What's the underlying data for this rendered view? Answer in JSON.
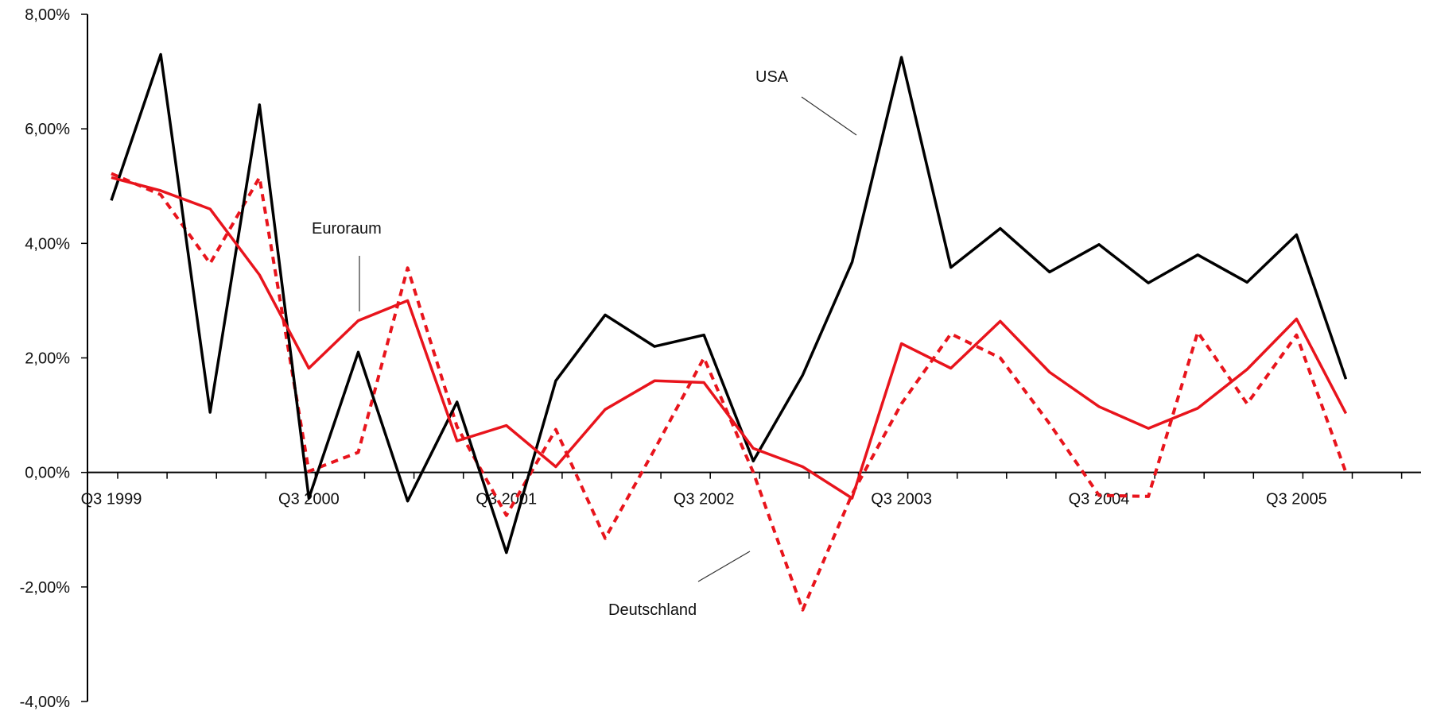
{
  "chart_data": {
    "type": "line",
    "categories": [
      "Q3 1999",
      "Q4 1999",
      "Q1 2000",
      "Q2 2000",
      "Q3 2000",
      "Q4 2000",
      "Q1 2001",
      "Q2 2001",
      "Q3 2001",
      "Q4 2001",
      "Q1 2002",
      "Q2 2002",
      "Q3 2002",
      "Q4 2002",
      "Q1 2003",
      "Q2 2003",
      "Q3 2003",
      "Q4 2003",
      "Q1 2004",
      "Q2 2004",
      "Q3 2004",
      "Q4 2004",
      "Q1 2005",
      "Q2 2005",
      "Q3 2005",
      "Q4 2005"
    ],
    "x_tick_labels": [
      "Q3 1999",
      "Q3 2000",
      "Q3 2001",
      "Q3 2002",
      "Q3 2003",
      "Q3 2004",
      "Q3 2005"
    ],
    "y_tick_labels": [
      "8,00%",
      "6,00%",
      "4,00%",
      "2,00%",
      "0,00%",
      "-2,00%",
      "-4,00%"
    ],
    "ylim": [
      -4,
      8
    ],
    "y_ticks": [
      8,
      6,
      4,
      2,
      0,
      -2,
      -4
    ],
    "x_tick_every": 4,
    "series": [
      {
        "name": "USA",
        "color": "#000000",
        "style": "solid",
        "values": [
          4.75,
          7.3,
          1.05,
          6.42,
          -0.45,
          2.1,
          -0.5,
          1.23,
          -1.4,
          1.6,
          2.75,
          2.2,
          2.4,
          0.2,
          1.7,
          3.67,
          7.25,
          3.58,
          4.26,
          3.5,
          3.98,
          3.31,
          3.8,
          3.32,
          4.15,
          1.63
        ]
      },
      {
        "name": "Euroraum",
        "color": "#e8141c",
        "style": "solid",
        "values": [
          5.15,
          4.92,
          4.6,
          3.45,
          1.82,
          2.65,
          3.0,
          0.55,
          0.82,
          0.1,
          1.1,
          1.6,
          1.57,
          0.42,
          0.1,
          -0.45,
          2.25,
          1.82,
          2.64,
          1.75,
          1.15,
          0.77,
          1.12,
          1.8,
          2.68,
          1.03
        ]
      },
      {
        "name": "Deutschland",
        "color": "#e8141c",
        "style": "dashed",
        "values": [
          5.22,
          4.85,
          3.65,
          5.15,
          0.02,
          0.35,
          3.57,
          0.8,
          -0.75,
          0.75,
          -1.15,
          0.4,
          2.0,
          0.0,
          -2.4,
          -0.38,
          1.2,
          2.42,
          2.0,
          0.85,
          -0.4,
          -0.42,
          2.45,
          1.2,
          2.4,
          0.0
        ]
      }
    ],
    "annotations": [
      {
        "label": "USA",
        "series": "USA"
      },
      {
        "label": "Euroraum",
        "series": "Euroraum"
      },
      {
        "label": "Deutschland",
        "series": "Deutschland"
      }
    ],
    "legend": "none",
    "grid": false
  }
}
